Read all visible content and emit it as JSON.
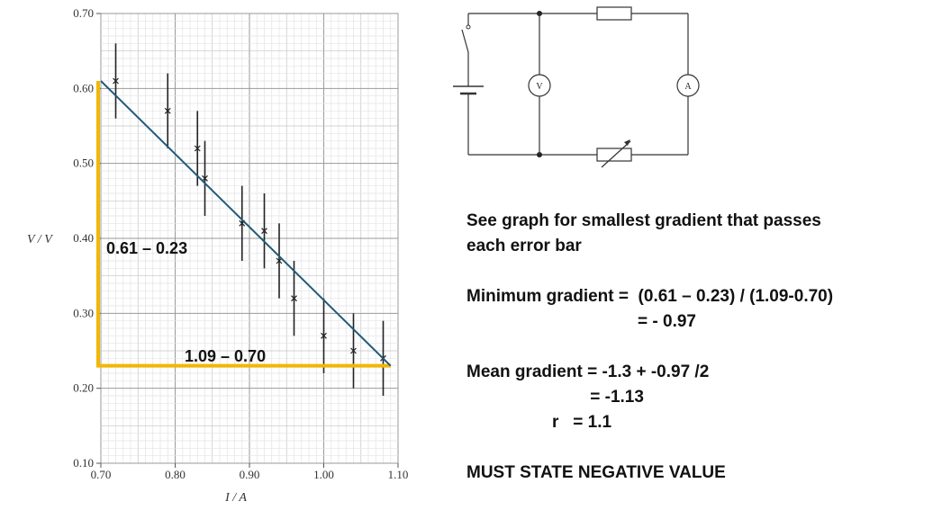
{
  "chart_data": {
    "type": "scatter",
    "xlabel": "I / A",
    "ylabel": "V / V",
    "xlim": [
      0.7,
      1.1
    ],
    "ylim": [
      0.1,
      0.7
    ],
    "x_ticks": [
      "0.70",
      "0.80",
      "0.90",
      "1.00",
      "1.10"
    ],
    "y_ticks": [
      "0.10",
      "0.20",
      "0.30",
      "0.40",
      "0.50",
      "0.60",
      "0.70"
    ],
    "grid": true,
    "points": [
      {
        "x": 0.72,
        "y": 0.61,
        "err": 0.05
      },
      {
        "x": 0.79,
        "y": 0.57,
        "err": 0.05
      },
      {
        "x": 0.83,
        "y": 0.52,
        "err": 0.05
      },
      {
        "x": 0.84,
        "y": 0.48,
        "err": 0.05
      },
      {
        "x": 0.89,
        "y": 0.42,
        "err": 0.05
      },
      {
        "x": 0.92,
        "y": 0.41,
        "err": 0.05
      },
      {
        "x": 0.94,
        "y": 0.37,
        "err": 0.05
      },
      {
        "x": 0.96,
        "y": 0.32,
        "err": 0.05
      },
      {
        "x": 1.0,
        "y": 0.27,
        "err": 0.05
      },
      {
        "x": 1.04,
        "y": 0.25,
        "err": 0.05
      },
      {
        "x": 1.08,
        "y": 0.24,
        "err": 0.05
      }
    ],
    "fit_line": {
      "x1": 0.7,
      "y1": 0.61,
      "x2": 1.09,
      "y2": 0.23,
      "color": "#1f5a7a"
    },
    "triangle": {
      "x_min": 0.7,
      "x_max": 1.09,
      "y_min": 0.23,
      "y_max": 0.61,
      "color": "#f2b705",
      "vertical_label": "0.61 – 0.23",
      "horizontal_label": "1.09 – 0.70"
    }
  },
  "notes": {
    "line1": "See graph for smallest gradient that passes",
    "line2": "each error bar",
    "line3": "Minimum gradient =  (0.61 – 0.23) / (1.09-0.70)",
    "line4": "                                    = - 0.97",
    "line5": "Mean gradient = -1.3 + -0.97 /2",
    "line6": "                          = -1.13",
    "line7": "                  r   = 1.1",
    "line8": "MUST STATE NEGATIVE VALUE"
  },
  "circuit": {
    "voltmeter_label": "V",
    "ammeter_label": "A"
  }
}
